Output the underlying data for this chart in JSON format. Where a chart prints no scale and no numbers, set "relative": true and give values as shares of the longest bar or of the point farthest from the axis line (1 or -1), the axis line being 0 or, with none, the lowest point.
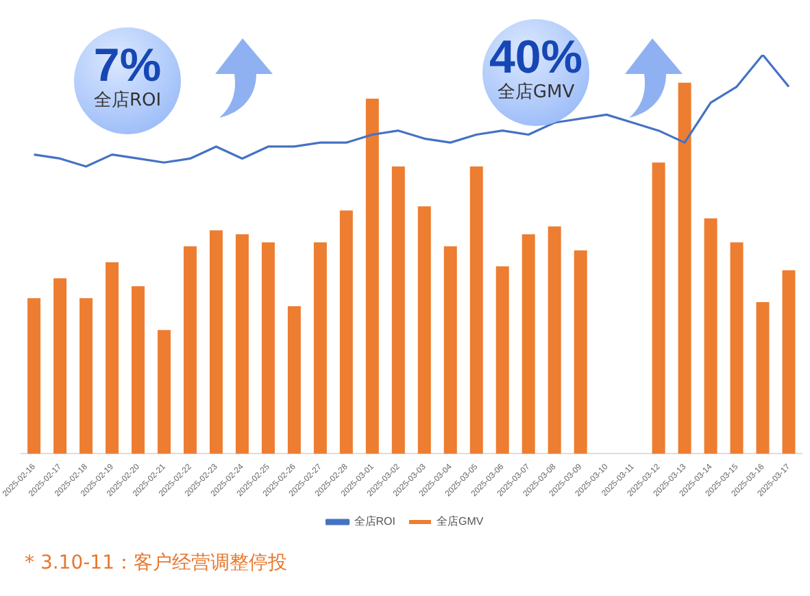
{
  "chart_data": {
    "type": "bar",
    "relative": true,
    "categories": [
      "2025-02-16",
      "2025-02-17",
      "2025-02-18",
      "2025-02-19",
      "2025-02-20",
      "2025-02-21",
      "2025-02-22",
      "2025-02-23",
      "2025-02-24",
      "2025-02-25",
      "2025-02-26",
      "2025-02-27",
      "2025-02-28",
      "2025-03-01",
      "2025-03-02",
      "2025-03-03",
      "2025-03-04",
      "2025-03-05",
      "2025-03-06",
      "2025-03-07",
      "2025-03-08",
      "2025-03-09",
      "2025-03-10",
      "2025-03-11",
      "2025-03-12",
      "2025-03-13",
      "2025-03-14",
      "2025-03-15",
      "2025-03-16",
      "2025-03-17"
    ],
    "series": [
      {
        "name": "全店GMV",
        "color": "#ed7d31",
        "values": [
          0.39,
          0.44,
          0.39,
          0.48,
          0.42,
          0.31,
          0.52,
          0.56,
          0.55,
          0.53,
          0.37,
          0.53,
          0.61,
          0.89,
          0.72,
          0.62,
          0.52,
          0.72,
          0.47,
          0.55,
          0.57,
          0.51,
          0,
          0,
          0.73,
          0.93,
          0.59,
          0.53,
          0.38,
          0.46
        ]
      },
      {
        "name": "全店ROI",
        "type": "line",
        "color": "#4472c4",
        "values": [
          0.75,
          0.74,
          0.72,
          0.75,
          0.74,
          0.73,
          0.74,
          0.77,
          0.74,
          0.77,
          0.77,
          0.78,
          0.78,
          0.8,
          0.81,
          0.79,
          0.78,
          0.8,
          0.81,
          0.8,
          0.83,
          null,
          0.85,
          0.83,
          0.81,
          0.78,
          0.88,
          0.92,
          1,
          0.92
        ]
      }
    ],
    "marker": "none",
    "grid": false,
    "legend": "bottom",
    "annotations": [
      "7%",
      "全店ROI",
      "40%",
      "全店GMV",
      "* 3.10-11：客户经营调整停投"
    ]
  }
}
